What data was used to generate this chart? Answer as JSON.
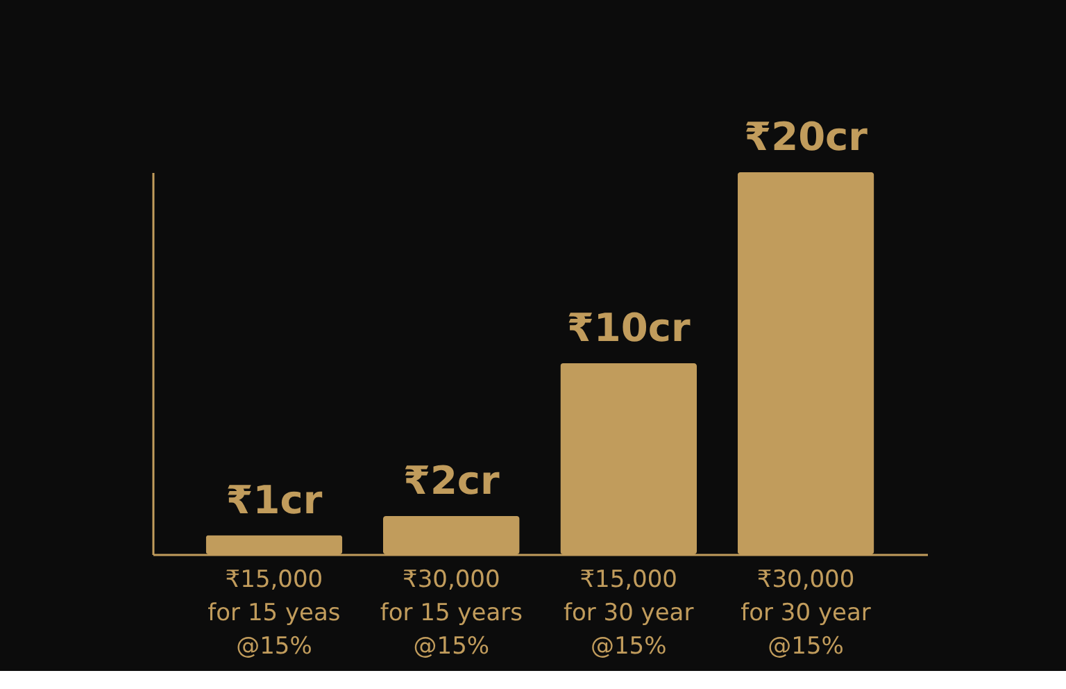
{
  "chart_data": {
    "type": "bar",
    "categories": [
      "₹15,000\nfor 15 yeas\n@15%",
      "₹30,000\nfor 15 years\n@15%",
      "₹15,000\nfor 30 year\n@15%",
      "₹30,000\nfor 30 year\n@15%"
    ],
    "values": [
      1,
      2,
      10,
      20
    ],
    "value_labels": [
      "₹1cr",
      "₹2cr",
      "₹10cr",
      "₹20cr"
    ],
    "ylim": [
      0,
      20
    ],
    "tick_labels": "x",
    "color": "#c19c5c",
    "grid": false
  }
}
